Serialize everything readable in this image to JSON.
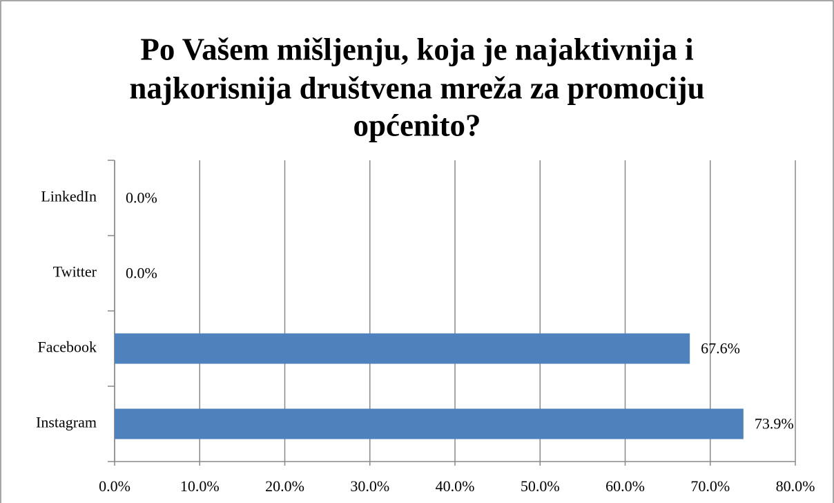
{
  "chart_data": {
    "type": "hbar",
    "title": [
      "Po Vašem mišljenju, koja je najaktivnija i",
      "najkorisnija društvena mreža za promociju",
      "općenito?"
    ],
    "categories": [
      "LinkedIn",
      "Twitter",
      "Facebook",
      "Instagram"
    ],
    "values": [
      0,
      0,
      67.6,
      73.9
    ],
    "value_labels": [
      "0.0%",
      "0.0%",
      "67.6%",
      "73.9%"
    ],
    "color": "#4f81bd",
    "xlim": [
      0,
      80
    ],
    "xticks": [
      {
        "value": 0,
        "label": "0.0%"
      },
      {
        "value": 10,
        "label": "10.0%"
      },
      {
        "value": 20,
        "label": "20.0%"
      },
      {
        "value": 30,
        "label": "30.0%"
      },
      {
        "value": 40,
        "label": "40.0%"
      },
      {
        "value": 50,
        "label": "50.0%"
      },
      {
        "value": 60,
        "label": "60.0%"
      },
      {
        "value": 70,
        "label": "70.0%"
      },
      {
        "value": 80,
        "label": "80.0%"
      }
    ],
    "grid": true
  }
}
